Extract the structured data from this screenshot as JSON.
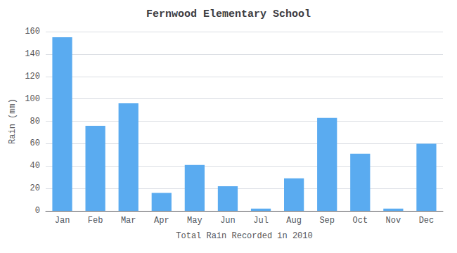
{
  "chart_data": {
    "type": "bar",
    "title": "Fernwood Elementary School",
    "xlabel": "Total Rain Recorded in 2010",
    "ylabel": "Rain (mm)",
    "categories": [
      "Jan",
      "Feb",
      "Mar",
      "Apr",
      "May",
      "Jun",
      "Jul",
      "Aug",
      "Sep",
      "Oct",
      "Nov",
      "Dec"
    ],
    "values": [
      155,
      76,
      96,
      16,
      41,
      22,
      2,
      29,
      83,
      51,
      2,
      60
    ],
    "color": "#5aabf0",
    "ylim": [
      0,
      160
    ],
    "yticks": [
      0,
      20,
      40,
      60,
      80,
      100,
      120,
      140,
      160
    ],
    "grid": true
  }
}
